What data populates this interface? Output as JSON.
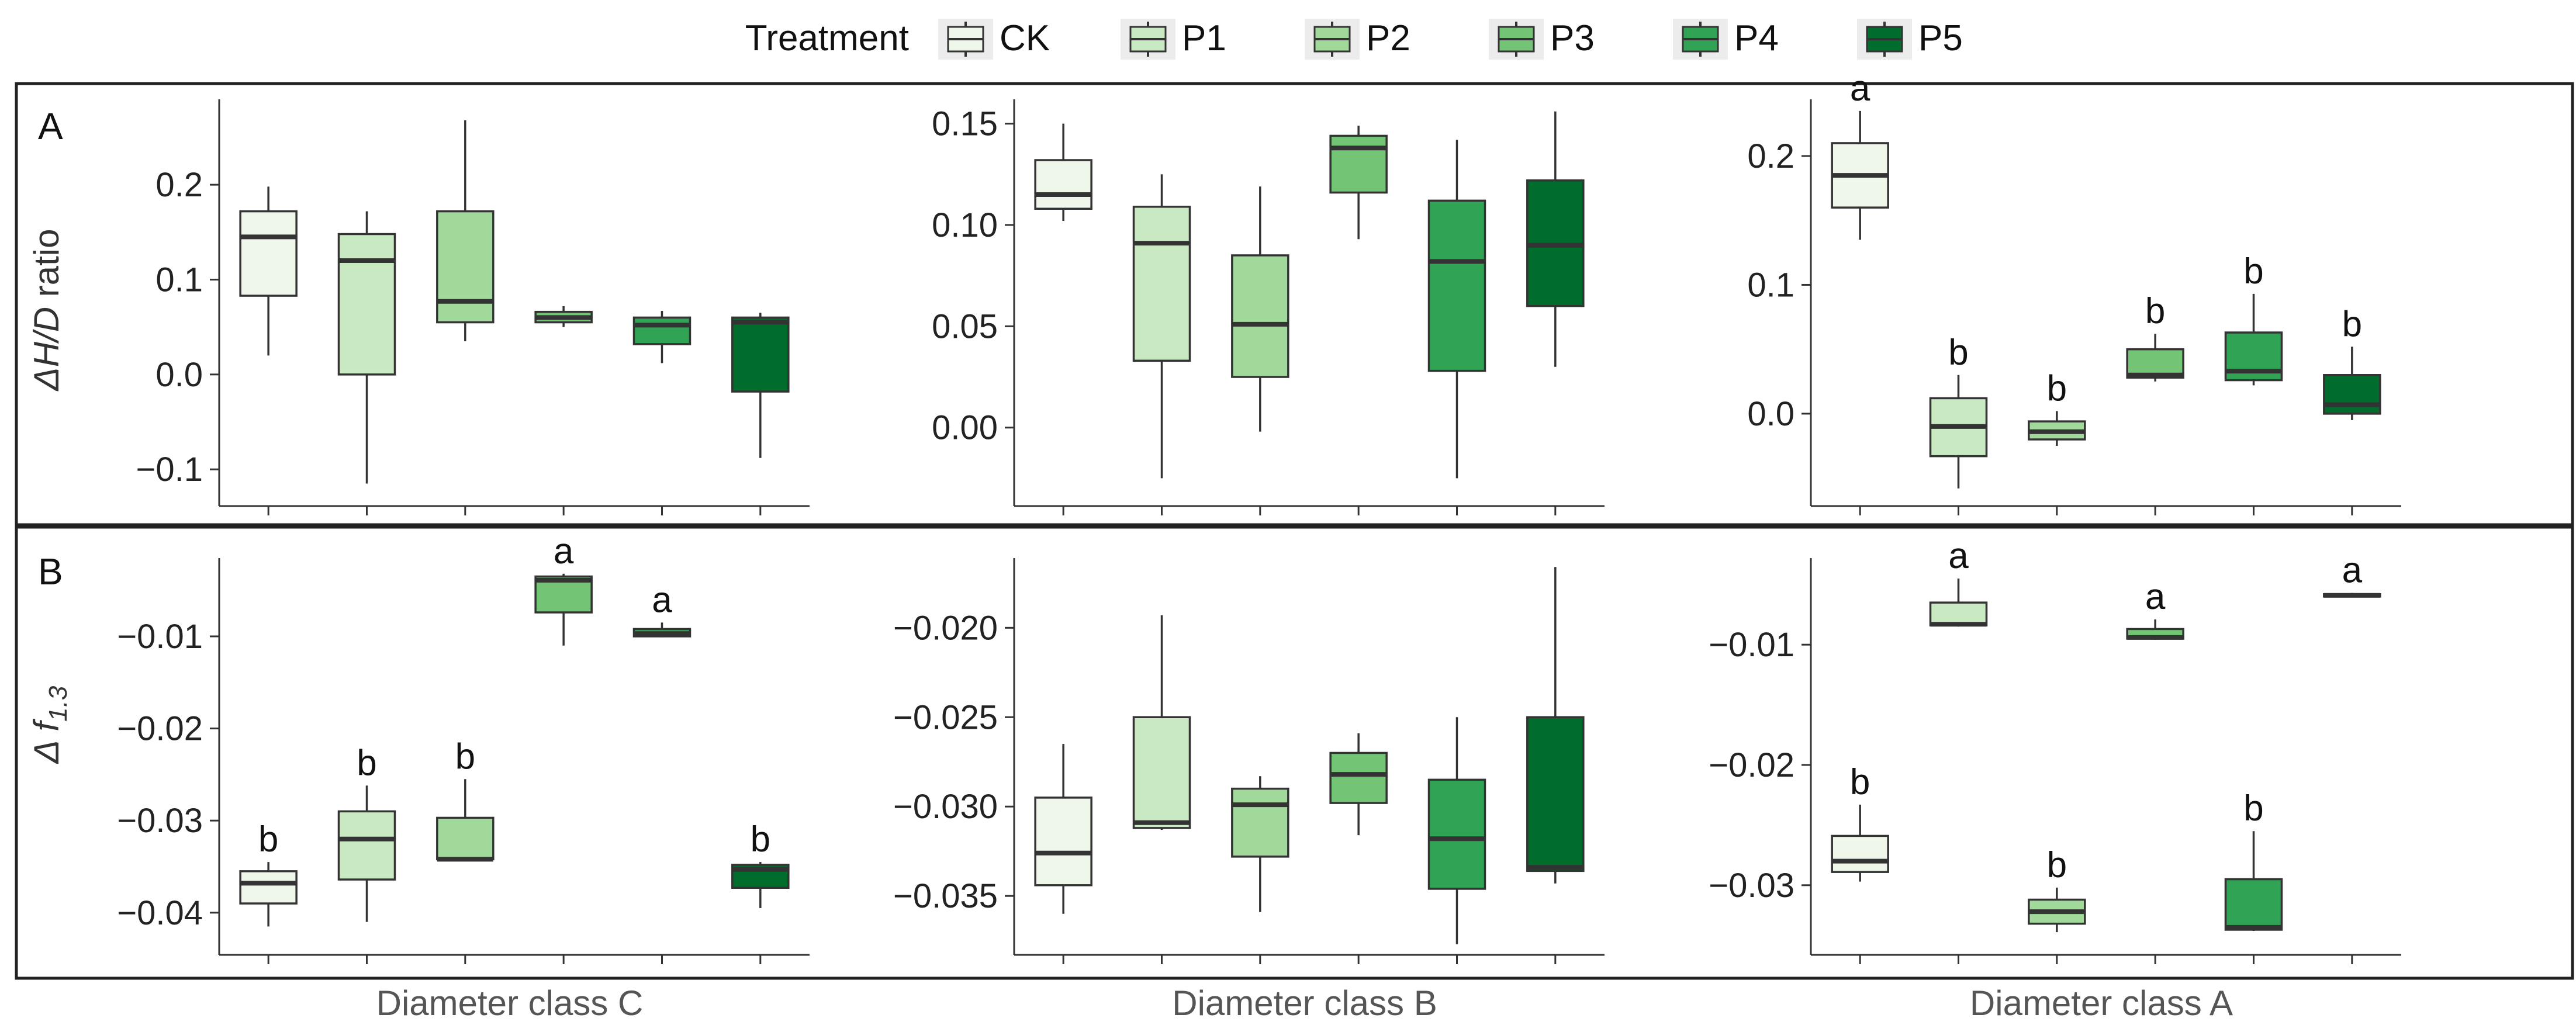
{
  "legend": {
    "title": "Treatment",
    "items": [
      {
        "name": "CK",
        "color": "#eef7ea"
      },
      {
        "name": "P1",
        "color": "#c9e9c2"
      },
      {
        "name": "P2",
        "color": "#a1d99b"
      },
      {
        "name": "P3",
        "color": "#74c476"
      },
      {
        "name": "P4",
        "color": "#31a354"
      },
      {
        "name": "P5",
        "color": "#006d2c"
      }
    ]
  },
  "rows": [
    {
      "letter": "A",
      "ylabel_main": "ΔH/D",
      "ylabel_suffix": " ratio"
    },
    {
      "letter": "B",
      "ylabel_main": "Δ f",
      "ylabel_sub": "1.3"
    }
  ],
  "columns": [
    {
      "label": "Diameter class C"
    },
    {
      "label": "Diameter class B"
    },
    {
      "label": "Diameter class A"
    }
  ],
  "chart_data": [
    {
      "type": "box",
      "row": 0,
      "col": 0,
      "ylim": [
        -0.135,
        0.29
      ],
      "ticks": [
        0.2,
        0.1,
        0.0,
        -0.1
      ],
      "tick_labels": [
        "0.2",
        "0.1",
        "0.0",
        "−0.1"
      ],
      "series": [
        {
          "name": "CK",
          "whisker_low": 0.02,
          "q1": 0.083,
          "median": 0.145,
          "q3": 0.172,
          "whisker_high": 0.198,
          "sig": ""
        },
        {
          "name": "P1",
          "whisker_low": -0.115,
          "q1": 0.0,
          "median": 0.12,
          "q3": 0.148,
          "whisker_high": 0.172,
          "sig": ""
        },
        {
          "name": "P2",
          "whisker_low": 0.035,
          "q1": 0.055,
          "median": 0.077,
          "q3": 0.172,
          "whisker_high": 0.268,
          "sig": ""
        },
        {
          "name": "P3",
          "whisker_low": 0.05,
          "q1": 0.055,
          "median": 0.06,
          "q3": 0.066,
          "whisker_high": 0.072,
          "sig": ""
        },
        {
          "name": "P4",
          "whisker_low": 0.012,
          "q1": 0.032,
          "median": 0.052,
          "q3": 0.06,
          "whisker_high": 0.067,
          "sig": ""
        },
        {
          "name": "P5",
          "whisker_low": -0.088,
          "q1": -0.018,
          "median": 0.055,
          "q3": 0.06,
          "whisker_high": 0.065,
          "sig": ""
        }
      ]
    },
    {
      "type": "box",
      "row": 0,
      "col": 1,
      "ylim": [
        -0.037,
        0.162
      ],
      "ticks": [
        0.15,
        0.1,
        0.05,
        0.0
      ],
      "tick_labels": [
        "0.15",
        "0.10",
        "0.05",
        "0.00"
      ],
      "series": [
        {
          "name": "CK",
          "whisker_low": 0.102,
          "q1": 0.108,
          "median": 0.115,
          "q3": 0.132,
          "whisker_high": 0.15,
          "sig": ""
        },
        {
          "name": "P1",
          "whisker_low": -0.025,
          "q1": 0.033,
          "median": 0.091,
          "q3": 0.109,
          "whisker_high": 0.125,
          "sig": ""
        },
        {
          "name": "P2",
          "whisker_low": -0.002,
          "q1": 0.025,
          "median": 0.051,
          "q3": 0.085,
          "whisker_high": 0.119,
          "sig": ""
        },
        {
          "name": "P3",
          "whisker_low": 0.093,
          "q1": 0.116,
          "median": 0.138,
          "q3": 0.144,
          "whisker_high": 0.149,
          "sig": ""
        },
        {
          "name": "P4",
          "whisker_low": -0.025,
          "q1": 0.028,
          "median": 0.082,
          "q3": 0.112,
          "whisker_high": 0.142,
          "sig": ""
        },
        {
          "name": "P5",
          "whisker_low": 0.03,
          "q1": 0.06,
          "median": 0.09,
          "q3": 0.122,
          "whisker_high": 0.156,
          "sig": ""
        }
      ]
    },
    {
      "type": "box",
      "row": 0,
      "col": 2,
      "ylim": [
        -0.069,
        0.244
      ],
      "ticks": [
        0.2,
        0.1,
        0.0
      ],
      "tick_labels": [
        "0.2",
        "0.1",
        "0.0"
      ],
      "series": [
        {
          "name": "CK",
          "whisker_low": 0.135,
          "q1": 0.16,
          "median": 0.185,
          "q3": 0.21,
          "whisker_high": 0.235,
          "sig": "a"
        },
        {
          "name": "P1",
          "whisker_low": -0.058,
          "q1": -0.033,
          "median": -0.01,
          "q3": 0.012,
          "whisker_high": 0.03,
          "sig": "b"
        },
        {
          "name": "P2",
          "whisker_low": -0.025,
          "q1": -0.02,
          "median": -0.014,
          "q3": -0.006,
          "whisker_high": 0.002,
          "sig": "b"
        },
        {
          "name": "P3",
          "whisker_low": 0.025,
          "q1": 0.028,
          "median": 0.03,
          "q3": 0.05,
          "whisker_high": 0.062,
          "sig": "b"
        },
        {
          "name": "P4",
          "whisker_low": 0.022,
          "q1": 0.026,
          "median": 0.033,
          "q3": 0.063,
          "whisker_high": 0.093,
          "sig": "b"
        },
        {
          "name": "P5",
          "whisker_low": -0.005,
          "q1": 0.0,
          "median": 0.007,
          "q3": 0.03,
          "whisker_high": 0.052,
          "sig": "b"
        }
      ]
    },
    {
      "type": "box",
      "row": 1,
      "col": 0,
      "ylim": [
        -0.0442,
        -0.0015
      ],
      "ticks": [
        -0.01,
        -0.02,
        -0.03,
        -0.04
      ],
      "tick_labels": [
        "−0.01",
        "−0.02",
        "−0.03",
        "−0.04"
      ],
      "series": [
        {
          "name": "CK",
          "whisker_low": -0.0415,
          "q1": -0.039,
          "median": -0.0368,
          "q3": -0.0355,
          "whisker_high": -0.0345,
          "sig": "b"
        },
        {
          "name": "P1",
          "whisker_low": -0.041,
          "q1": -0.0364,
          "median": -0.032,
          "q3": -0.029,
          "whisker_high": -0.0262,
          "sig": "b"
        },
        {
          "name": "P2",
          "whisker_low": -0.0343,
          "q1": -0.0342,
          "median": -0.0342,
          "q3": -0.0297,
          "whisker_high": -0.0255,
          "sig": "b"
        },
        {
          "name": "P3",
          "whisker_low": -0.011,
          "q1": -0.0074,
          "median": -0.0039,
          "q3": -0.0035,
          "whisker_high": -0.0032,
          "sig": "a"
        },
        {
          "name": "P4",
          "whisker_low": -0.0101,
          "q1": -0.01,
          "median": -0.0097,
          "q3": -0.0092,
          "whisker_high": -0.0085,
          "sig": "a"
        },
        {
          "name": "P5",
          "whisker_low": -0.0395,
          "q1": -0.0373,
          "median": -0.0353,
          "q3": -0.0348,
          "whisker_high": -0.0345,
          "sig": "b"
        }
      ]
    },
    {
      "type": "box",
      "row": 1,
      "col": 1,
      "ylim": [
        -0.0381,
        -0.0161
      ],
      "ticks": [
        -0.02,
        -0.025,
        -0.03,
        -0.035
      ],
      "tick_labels": [
        "−0.020",
        "−0.025",
        "−0.030",
        "−0.035"
      ],
      "series": [
        {
          "name": "CK",
          "whisker_low": -0.036,
          "q1": -0.0344,
          "median": -0.0326,
          "q3": -0.0295,
          "whisker_high": -0.0265,
          "sig": ""
        },
        {
          "name": "P1",
          "whisker_low": -0.0313,
          "q1": -0.0312,
          "median": -0.0309,
          "q3": -0.025,
          "whisker_high": -0.0193,
          "sig": ""
        },
        {
          "name": "P2",
          "whisker_low": -0.0359,
          "q1": -0.0328,
          "median": -0.0299,
          "q3": -0.029,
          "whisker_high": -0.0283,
          "sig": ""
        },
        {
          "name": "P3",
          "whisker_low": -0.0316,
          "q1": -0.0298,
          "median": -0.0282,
          "q3": -0.027,
          "whisker_high": -0.0259,
          "sig": ""
        },
        {
          "name": "P4",
          "whisker_low": -0.0377,
          "q1": -0.0346,
          "median": -0.0318,
          "q3": -0.0285,
          "whisker_high": -0.025,
          "sig": ""
        },
        {
          "name": "P5",
          "whisker_low": -0.0343,
          "q1": -0.0336,
          "median": -0.0334,
          "q3": -0.025,
          "whisker_high": -0.0166,
          "sig": ""
        }
      ]
    },
    {
      "type": "box",
      "row": 1,
      "col": 2,
      "ylim": [
        -0.0355,
        -0.0028
      ],
      "ticks": [
        -0.01,
        -0.02,
        -0.03
      ],
      "tick_labels": [
        "−0.01",
        "−0.02",
        "−0.03"
      ],
      "series": [
        {
          "name": "CK",
          "whisker_low": -0.0297,
          "q1": -0.0289,
          "median": -0.028,
          "q3": -0.0259,
          "whisker_high": -0.0233,
          "sig": "b"
        },
        {
          "name": "P1",
          "whisker_low": -0.0085,
          "q1": -0.0084,
          "median": -0.0083,
          "q3": -0.0065,
          "whisker_high": -0.0045,
          "sig": "a"
        },
        {
          "name": "P2",
          "whisker_low": -0.0339,
          "q1": -0.0332,
          "median": -0.0322,
          "q3": -0.0312,
          "whisker_high": -0.0302,
          "sig": "b"
        },
        {
          "name": "P3",
          "whisker_low": -0.0096,
          "q1": -0.0095,
          "median": -0.0094,
          "q3": -0.0087,
          "whisker_high": -0.0079,
          "sig": "a"
        },
        {
          "name": "P4",
          "whisker_low": -0.0338,
          "q1": -0.0337,
          "median": -0.0335,
          "q3": -0.0295,
          "whisker_high": -0.0255,
          "sig": "b"
        },
        {
          "name": "P5",
          "whisker_low": -0.006,
          "q1": -0.006,
          "median": -0.0059,
          "q3": -0.0058,
          "whisker_high": -0.0057,
          "sig": "a"
        }
      ]
    }
  ]
}
